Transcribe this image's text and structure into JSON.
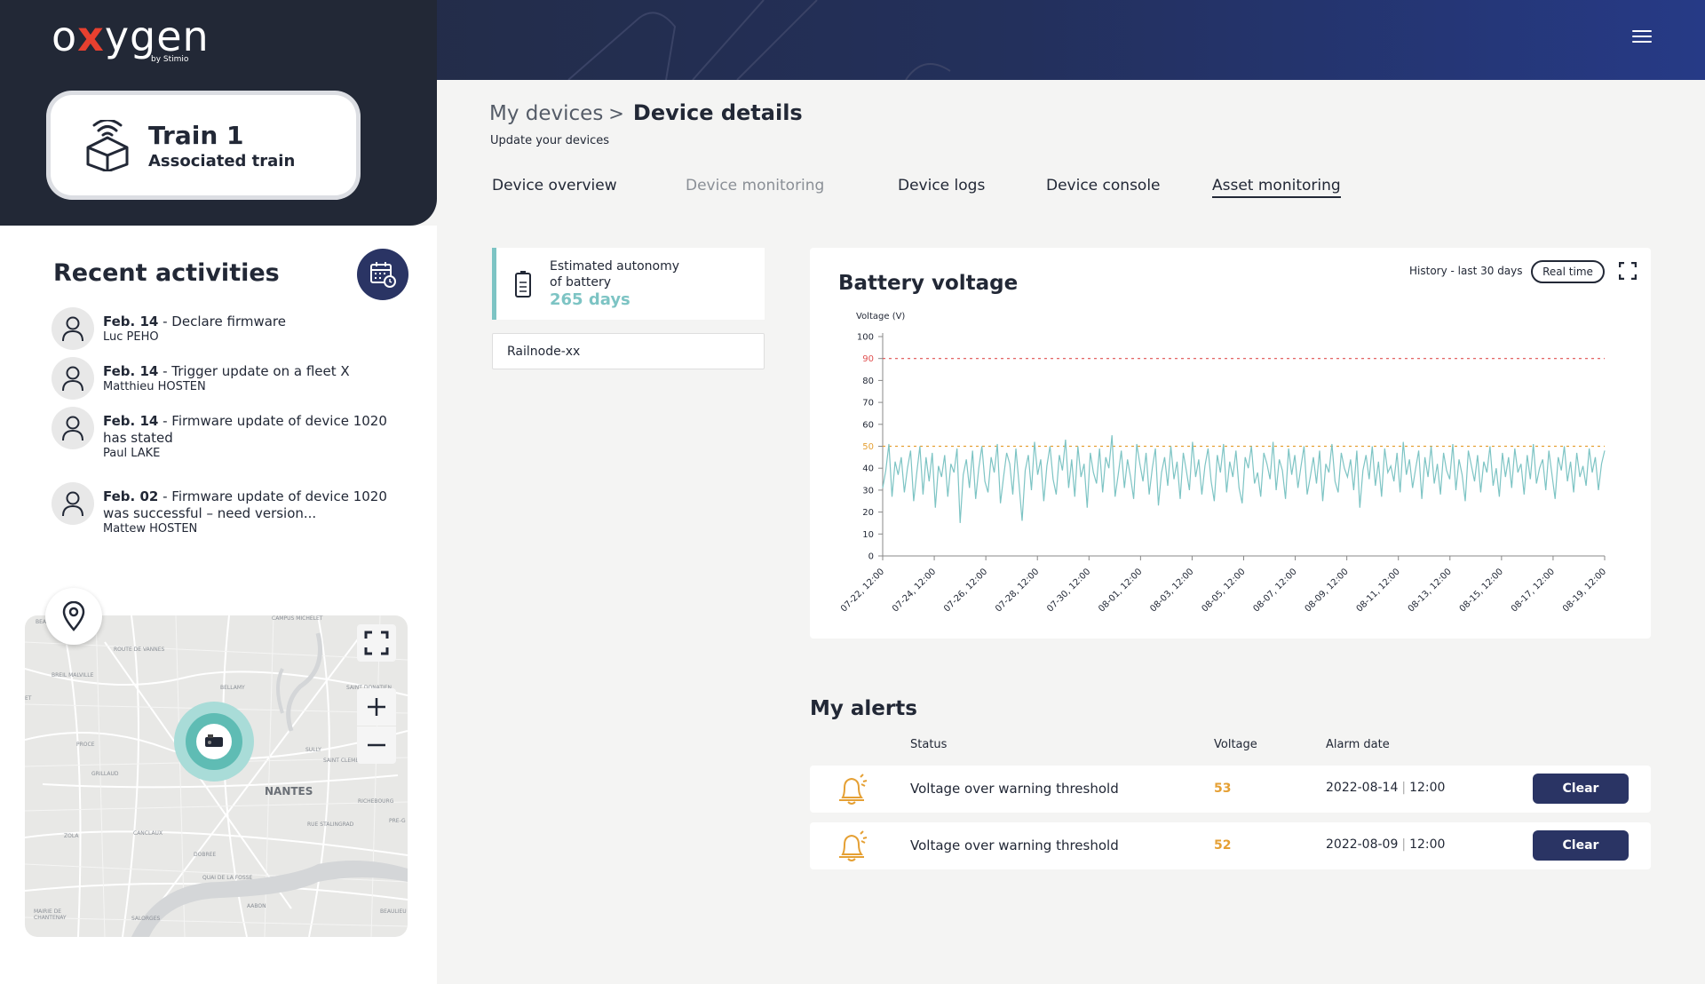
{
  "header": {
    "logo_prefix": "o",
    "logo_x": "x",
    "logo_suffix": "ygen",
    "logo_by": "by Stimio",
    "menu_icon": "hamburger-icon"
  },
  "train": {
    "title": "Train 1",
    "subtitle": "Associated train"
  },
  "recent": {
    "title": "Recent activities",
    "items": [
      {
        "date": "Feb. 14",
        "text": " - Declare firmware",
        "user": "Luc PEHO"
      },
      {
        "date": "Feb. 14",
        "text": " - Trigger update on a fleet X",
        "user": "Matthieu HOSTEN"
      },
      {
        "date": "Feb. 14",
        "text": " - Firmware update of device 1020 has stated",
        "user": "Paul LAKE"
      },
      {
        "date": "Feb. 02",
        "text": " - Firmware update of device 1020 was successful – need version...",
        "user": "Mattew HOSTEN"
      }
    ]
  },
  "map": {
    "city": "NANTES",
    "places": [
      "BREIL MALVILLE",
      "ROUTE DE VANNES",
      "CAMPUS MICHELET",
      "BELLAMY",
      "SAINT DONATIEN",
      "PROCE",
      "GRILLAUD",
      "SULLY",
      "SAINT CLEMENT",
      "RICHEBOURG",
      "ZOLA",
      "CANCLAUX",
      "DOBREE",
      "MAIRIE DE CHANTENAY",
      "SALORGES",
      "AABON",
      "BEAULIEU",
      "PRE-G",
      "Rue Stalingrad",
      "Quai de la Fosse",
      "BEA",
      "ET"
    ]
  },
  "breadcrumb": {
    "parent": "My devices",
    "sep": ">",
    "current": "Device details"
  },
  "page_subtitle": "Update your devices",
  "tabs": [
    {
      "label": "Device overview",
      "state": "normal"
    },
    {
      "label": "Device monitoring",
      "state": "disabled"
    },
    {
      "label": "Device logs",
      "state": "normal"
    },
    {
      "label": "Device console",
      "state": "normal"
    },
    {
      "label": "Asset monitoring",
      "state": "active"
    }
  ],
  "autonomy": {
    "label_1": "Estimated autonomy",
    "label_2": "of battery",
    "value": "265 days"
  },
  "device_input": {
    "value": "Railnode-xx"
  },
  "chart_card": {
    "history_label": "History - last 30 days",
    "realtime_label": "Real time"
  },
  "chart_data": {
    "type": "line",
    "title": "Battery voltage",
    "ylabel": "Voltage (V)",
    "ylim": [
      0,
      100
    ],
    "yticks": [
      0,
      10,
      20,
      30,
      40,
      50,
      60,
      70,
      80,
      90,
      100
    ],
    "xtick_labels": [
      "07-22, 12:00",
      "07-24, 12:00",
      "07-26, 12:00",
      "07-28, 12:00",
      "07-30, 12:00",
      "08-01, 12:00",
      "08-03, 12:00",
      "08-05, 12:00",
      "08-07, 12:00",
      "08-09, 12:00",
      "08-11, 12:00",
      "08-13, 12:00",
      "08-15, 12:00",
      "08-17, 12:00",
      "08-19, 12:00"
    ],
    "thresholds": [
      {
        "value": 90,
        "color": "#e05050"
      },
      {
        "value": 50,
        "color": "#e5a034"
      }
    ],
    "series": [
      {
        "color": "#7dc4c4",
        "values": [
          31,
          39,
          51,
          27,
          43,
          37,
          45,
          29,
          40,
          48,
          25,
          38,
          50,
          28,
          45,
          34,
          47,
          22,
          41,
          36,
          46,
          27,
          42,
          38,
          49,
          15,
          37,
          44,
          31,
          48,
          26,
          40,
          50,
          34,
          29,
          45,
          38,
          51,
          24,
          36,
          47,
          42,
          28,
          49,
          33,
          16,
          39,
          46,
          30,
          52,
          37,
          44,
          25,
          41,
          50,
          35,
          28,
          46,
          39,
          53,
          31,
          44,
          27,
          50,
          36,
          42,
          22,
          47,
          38,
          33,
          49,
          29,
          45,
          40,
          55,
          27,
          37,
          48,
          31,
          44,
          36,
          26,
          51,
          42,
          34,
          47,
          28,
          40,
          49,
          23,
          38,
          45,
          32,
          50,
          35,
          43,
          26,
          47,
          39,
          30,
          52,
          36,
          44,
          28,
          41,
          49,
          34,
          25,
          46,
          38,
          51,
          29,
          43,
          36,
          48,
          31,
          24,
          45,
          40,
          50,
          33,
          38,
          27,
          47,
          42,
          35,
          52,
          30,
          44,
          39,
          26,
          49,
          37,
          46,
          31,
          41,
          50,
          28,
          36,
          45,
          33,
          48,
          25,
          42,
          38,
          51,
          34,
          29,
          47,
          40,
          36,
          44,
          30,
          48,
          22,
          39,
          46,
          35,
          50,
          32,
          43,
          27,
          49,
          38,
          41,
          34,
          47,
          29,
          52,
          37,
          44,
          31,
          40,
          48,
          26,
          45,
          36,
          50,
          33,
          42,
          28,
          47,
          39,
          35,
          51,
          30,
          44,
          37,
          25,
          48,
          41,
          34,
          46,
          29,
          43,
          38,
          50,
          32,
          40,
          27,
          47,
          36,
          45,
          31,
          49,
          38,
          42,
          28,
          46,
          35,
          51,
          33,
          40,
          44,
          30,
          48,
          37,
          26,
          45,
          39,
          50,
          34,
          43,
          29,
          47,
          36,
          41,
          32,
          49,
          38,
          45,
          30,
          42,
          48
        ]
      }
    ]
  },
  "alerts": {
    "title": "My alerts",
    "columns": {
      "status": "Status",
      "voltage": "Voltage",
      "date": "Alarm date"
    },
    "rows": [
      {
        "status": "Voltage over warning threshold",
        "voltage": "53",
        "date": "2022-08-14",
        "time": "12:00",
        "action": "Clear"
      },
      {
        "status": "Voltage over warning threshold",
        "voltage": "52",
        "date": "2022-08-09",
        "time": "12:00",
        "action": "Clear"
      }
    ]
  }
}
